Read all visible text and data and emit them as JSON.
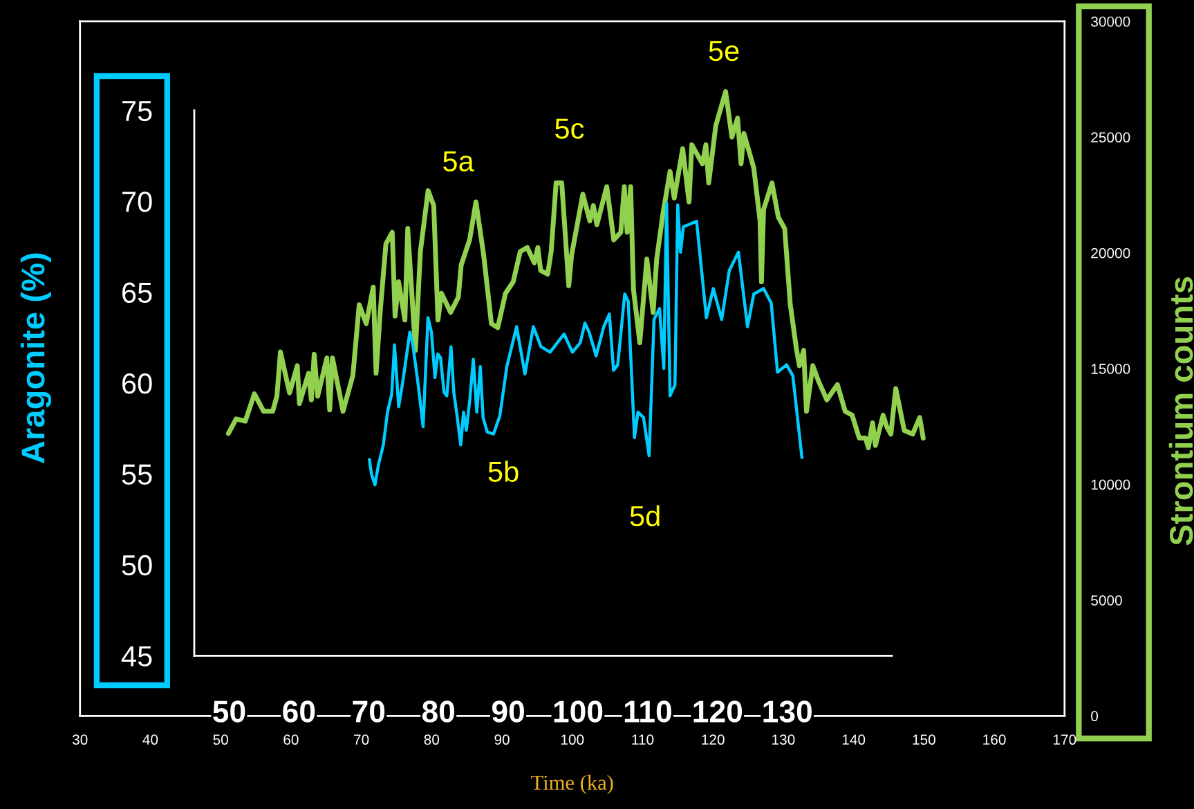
{
  "chart_data": [
    {
      "type": "line",
      "ylabel": "Aragonite (%)",
      "xlim": [
        45,
        145
      ],
      "ylim": [
        45,
        75
      ],
      "xticks": [
        50,
        60,
        70,
        80,
        90,
        100,
        110,
        120,
        130
      ],
      "yticks": [
        45,
        50,
        55,
        60,
        65,
        70,
        75
      ],
      "series": [
        {
          "color": "#00ccff",
          "x": [
            70.1,
            70.4,
            70.9,
            71.4,
            72.1,
            72.7,
            73.3,
            73.7,
            74.3,
            74.9,
            75.9,
            76.3,
            77.1,
            77.8,
            78.5,
            79.0,
            79.5,
            79.9,
            80.3,
            80.8,
            81.2,
            81.8,
            82.2,
            82.6,
            83.2,
            83.6,
            84.0,
            84.5,
            85.0,
            85.5,
            86.0,
            86.4,
            87.0,
            87.9,
            88.8,
            89.8,
            91.2,
            92.4,
            93.6,
            94.7,
            96.0,
            98.0,
            99.2,
            100.3,
            101.0,
            101.6,
            102.6,
            103.7,
            104.5,
            105.1,
            105.7,
            106.7,
            107.2,
            108.1,
            108.6,
            109.4,
            110.2,
            110.9,
            111.7,
            112.3,
            112.7,
            113.2,
            113.9,
            114.3,
            114.7,
            115.1,
            117.0,
            118.4,
            119.4,
            120.6,
            121.7,
            123.0,
            124.3,
            125.2,
            126.6,
            127.7,
            128.6,
            129.9,
            130.8,
            132.1
          ],
          "values": [
            55.8,
            55.0,
            54.4,
            55.5,
            56.6,
            58.4,
            59.4,
            62.1,
            58.7,
            60.1,
            62.8,
            62.2,
            59.9,
            57.6,
            63.6,
            62.8,
            60.3,
            61.6,
            61.4,
            59.5,
            59.3,
            62.0,
            59.5,
            58.4,
            56.6,
            58.4,
            57.4,
            59.1,
            61.3,
            58.4,
            60.9,
            58.1,
            57.3,
            57.2,
            58.2,
            60.9,
            63.1,
            60.5,
            63.1,
            62.0,
            61.7,
            62.7,
            61.7,
            62.2,
            63.3,
            62.8,
            61.5,
            63.1,
            63.8,
            60.7,
            61.0,
            64.9,
            64.5,
            57.0,
            58.4,
            58.1,
            56.0,
            63.5,
            64.1,
            60.8,
            69.9,
            59.3,
            59.9,
            69.8,
            67.2,
            68.6,
            68.9,
            63.6,
            65.2,
            63.5,
            66.2,
            67.2,
            63.1,
            64.9,
            65.2,
            64.4,
            60.6,
            61.0,
            60.4,
            55.9
          ]
        }
      ]
    },
    {
      "type": "line",
      "xlabel": "Time (ka)",
      "ylabel": "Strontium counts",
      "xlim": [
        30,
        170
      ],
      "ylim": [
        0,
        30000
      ],
      "xticks": [
        30,
        40,
        50,
        60,
        70,
        80,
        90,
        100,
        110,
        120,
        130,
        140,
        150,
        160,
        170
      ],
      "yticks": [
        0,
        5000,
        10000,
        15000,
        20000,
        25000,
        30000
      ],
      "series": [
        {
          "color": "#92d050",
          "x": [
            51.1,
            52.2,
            53.5,
            54.8,
            56.1,
            57.4,
            58.0,
            58.5,
            59.8,
            60.9,
            61.2,
            62.5,
            62.9,
            63.3,
            63.8,
            65.1,
            65.5,
            65.9,
            67.4,
            68.8,
            69.7,
            70.7,
            71.7,
            72.1,
            72.7,
            73.5,
            74.4,
            74.8,
            75.3,
            76.2,
            76.6,
            77.7,
            78.4,
            79.5,
            80.3,
            80.9,
            81.4,
            82.7,
            83.8,
            84.2,
            85.4,
            86.3,
            87.4,
            88.5,
            89.4,
            90.5,
            91.6,
            92.6,
            93.6,
            94.6,
            95.1,
            95.5,
            96.5,
            97.0,
            97.7,
            98.5,
            99.5,
            99.9,
            101.5,
            102.5,
            103.0,
            103.5,
            104.9,
            105.9,
            106.9,
            107.4,
            107.8,
            108.3,
            108.7,
            109.6,
            110.6,
            111.5,
            112.0,
            112.9,
            113.9,
            114.5,
            115.7,
            116.6,
            117.0,
            118.5,
            119.0,
            119.4,
            120.4,
            121.8,
            122.7,
            123.5,
            124.0,
            124.4,
            125.8,
            126.7,
            126.9,
            127.2,
            128.4,
            129.3,
            130.2,
            131.0,
            131.9,
            132.3,
            132.9,
            133.3,
            134.2,
            135.0,
            136.2,
            137.7,
            138.8,
            139.8,
            140.8,
            141.7,
            142.1,
            142.7,
            143.1,
            144.2,
            144.7,
            145.3,
            146.0,
            147.2,
            148.4,
            149.4,
            149.9
          ],
          "values": [
            12200,
            12830,
            12730,
            13910,
            13160,
            13160,
            13810,
            15720,
            13950,
            15130,
            13490,
            14800,
            13650,
            15620,
            13810,
            15460,
            13220,
            15460,
            13160,
            14700,
            17760,
            16940,
            18520,
            14800,
            17500,
            20390,
            20890,
            17270,
            18750,
            17100,
            21050,
            15790,
            20060,
            22690,
            22040,
            17100,
            18250,
            17430,
            18090,
            19470,
            20560,
            22200,
            19900,
            16940,
            16770,
            18250,
            18750,
            20060,
            20230,
            19570,
            20230,
            19240,
            19080,
            20060,
            23020,
            23020,
            18580,
            19900,
            22530,
            21380,
            22040,
            21220,
            22860,
            20560,
            20890,
            22860,
            20890,
            22860,
            18420,
            16120,
            19730,
            17430,
            19730,
            21710,
            23520,
            22370,
            24500,
            22200,
            24670,
            23850,
            24670,
            23020,
            25490,
            26970,
            25000,
            25820,
            23850,
            25160,
            23680,
            21380,
            18750,
            21870,
            23020,
            21540,
            21050,
            17760,
            15790,
            15130,
            15790,
            13160,
            15130,
            14470,
            13650,
            14310,
            13160,
            12990,
            12000,
            12000,
            11580,
            12660,
            11680,
            12990,
            12500,
            12170,
            14140,
            12330,
            12170,
            12890,
            12000
          ]
        }
      ],
      "annotations": [
        "5a",
        "5b",
        "5c",
        "5d",
        "5e"
      ]
    }
  ]
}
